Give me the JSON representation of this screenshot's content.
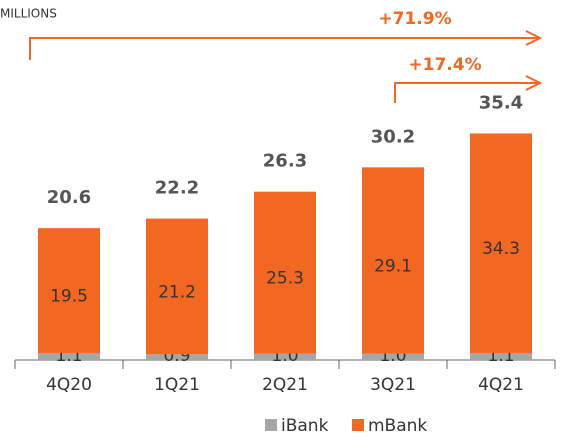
{
  "chart_data": {
    "type": "stacked_bar",
    "unit_label": "MILLIONS",
    "categories": [
      "4Q20",
      "1Q21",
      "2Q21",
      "3Q21",
      "4Q21"
    ],
    "series": [
      {
        "name": "iBank",
        "color": "#a6a6a6",
        "values": [
          1.1,
          0.9,
          1.0,
          1.0,
          1.1
        ],
        "value_labels": [
          "1.1",
          "0.9",
          "1.0",
          "1.0",
          "1.1"
        ]
      },
      {
        "name": "mBank",
        "color": "#f26722",
        "values": [
          19.5,
          21.2,
          25.3,
          29.1,
          34.3
        ]
      }
    ],
    "totals": [
      20.6,
      22.2,
      26.3,
      30.2,
      35.4
    ],
    "annotations": [
      "+71.9%",
      "+17.4%"
    ],
    "legend": "bottom"
  }
}
